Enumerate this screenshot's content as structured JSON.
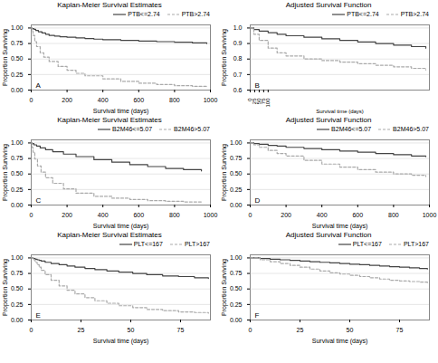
{
  "chart_data": [
    {
      "type": "step",
      "title": "Kaplan-Meier Survival Estimates",
      "xlabel": "Survival time (days)",
      "ylabel": "Proportion Surviving",
      "annotations": [
        "A"
      ],
      "legend": "upper right",
      "grid": true,
      "xlim": [
        0,
        1000
      ],
      "xticks": [
        0,
        200,
        400,
        600,
        800,
        1000
      ],
      "ylim": [
        0.0,
        1.05
      ],
      "yticks": [
        {
          "value": 0,
          "label": "0.00"
        },
        0.25,
        {
          "value": 0.5,
          "label": "0.50"
        },
        0.75,
        {
          "value": 1.0,
          "label": "1.00"
        }
      ],
      "series": [
        {
          "name": "PTB<=2.74",
          "color": "#444444",
          "line_style": "solid",
          "x": [
            0,
            5,
            15,
            25,
            40,
            60,
            80,
            100,
            130,
            160,
            200,
            250,
            300,
            350,
            400,
            500,
            600,
            700,
            800,
            900,
            980
          ],
          "values": [
            1.0,
            0.99,
            0.98,
            0.96,
            0.94,
            0.92,
            0.9,
            0.88,
            0.87,
            0.86,
            0.85,
            0.84,
            0.83,
            0.82,
            0.81,
            0.8,
            0.79,
            0.78,
            0.77,
            0.76,
            0.75
          ]
        },
        {
          "name": "PTB>2.74",
          "color": "#aaaaaa",
          "line_style": "dashed",
          "x": [
            0,
            5,
            10,
            20,
            30,
            50,
            70,
            100,
            150,
            200,
            250,
            300,
            400,
            500,
            600,
            700,
            800,
            900,
            980
          ],
          "values": [
            1.0,
            0.95,
            0.88,
            0.78,
            0.7,
            0.6,
            0.53,
            0.46,
            0.38,
            0.32,
            0.27,
            0.23,
            0.18,
            0.14,
            0.11,
            0.09,
            0.07,
            0.06,
            0.05
          ]
        }
      ]
    },
    {
      "type": "step",
      "title": "Adjusted Survival Function",
      "xlabel": "Survival time (days)",
      "ylabel": "Proportion Surviving",
      "annotations": [
        "B"
      ],
      "legend": "upper right",
      "grid": true,
      "xlim": [
        0,
        1000
      ],
      "xticks": [
        0,
        25,
        50,
        75,
        100
      ],
      "ylim": [
        0.6,
        1.02
      ],
      "yticks": [
        0.6,
        0.7,
        0.8,
        0.9,
        {
          "value": 1.0,
          "label": "1.0"
        }
      ],
      "series": [
        {
          "name": "PTB<=2.74",
          "color": "#444444",
          "line_style": "solid",
          "x": [
            0,
            20,
            50,
            100,
            150,
            200,
            300,
            400,
            500,
            600,
            700,
            800,
            900,
            980
          ],
          "values": [
            1.0,
            0.99,
            0.98,
            0.97,
            0.96,
            0.95,
            0.94,
            0.93,
            0.92,
            0.91,
            0.9,
            0.89,
            0.88,
            0.87
          ]
        },
        {
          "name": "PTB>2.74",
          "color": "#aaaaaa",
          "line_style": "dashed",
          "x": [
            0,
            20,
            50,
            100,
            150,
            200,
            300,
            400,
            500,
            600,
            700,
            800,
            900,
            980
          ],
          "values": [
            1.0,
            0.96,
            0.92,
            0.87,
            0.84,
            0.82,
            0.8,
            0.79,
            0.78,
            0.77,
            0.76,
            0.75,
            0.74,
            0.73
          ]
        }
      ]
    },
    {
      "type": "step",
      "title": "Kaplan-Meier Survival Estimates",
      "xlabel": "Survival time (days)",
      "ylabel": "Proportion Surviving",
      "annotations": [
        "C"
      ],
      "legend": "upper right",
      "grid": true,
      "xlim": [
        0,
        1000
      ],
      "xticks": [
        0,
        200,
        400,
        600,
        800,
        1000
      ],
      "ylim": [
        0.0,
        1.05
      ],
      "yticks": [
        {
          "value": 0,
          "label": "0.00"
        },
        0.25,
        {
          "value": 0.5,
          "label": "0.50"
        },
        0.75,
        {
          "value": 1.0,
          "label": "1.00"
        }
      ],
      "series": [
        {
          "name": "B2M46<=5.07",
          "color": "#444444",
          "line_style": "solid",
          "x": [
            0,
            5,
            15,
            30,
            50,
            80,
            120,
            180,
            250,
            350,
            450,
            550,
            650,
            750,
            850,
            950
          ],
          "values": [
            1.0,
            0.99,
            0.97,
            0.95,
            0.92,
            0.89,
            0.86,
            0.82,
            0.78,
            0.73,
            0.69,
            0.65,
            0.62,
            0.59,
            0.57,
            0.55
          ]
        },
        {
          "name": "B2M46>5.07",
          "color": "#aaaaaa",
          "line_style": "dashed",
          "x": [
            0,
            5,
            10,
            20,
            35,
            55,
            80,
            120,
            180,
            250,
            350,
            450,
            550,
            650,
            750,
            850,
            950
          ],
          "values": [
            1.0,
            0.93,
            0.85,
            0.74,
            0.63,
            0.53,
            0.44,
            0.35,
            0.26,
            0.19,
            0.14,
            0.11,
            0.09,
            0.07,
            0.06,
            0.05,
            0.04
          ]
        }
      ]
    },
    {
      "type": "step",
      "title": "Adjusted Survival Function",
      "xlabel": "Survival time (days)",
      "ylabel": "Proportion Surviving",
      "annotations": [
        "D"
      ],
      "legend": "upper right",
      "grid": true,
      "xlim": [
        0,
        1000
      ],
      "xticks": [
        0,
        200,
        400,
        600,
        800,
        1000
      ],
      "ylim": [
        0.0,
        1.05
      ],
      "yticks": [
        {
          "value": 0,
          "label": "0.00"
        },
        0.25,
        {
          "value": 0.5,
          "label": "0.50"
        },
        0.75,
        {
          "value": 1.0,
          "label": "1.00"
        }
      ],
      "series": [
        {
          "name": "B2M46<=5.07",
          "color": "#444444",
          "line_style": "solid",
          "x": [
            0,
            20,
            50,
            100,
            150,
            200,
            300,
            400,
            500,
            600,
            700,
            800,
            900,
            980
          ],
          "values": [
            1.0,
            0.99,
            0.98,
            0.96,
            0.95,
            0.93,
            0.91,
            0.89,
            0.87,
            0.85,
            0.83,
            0.81,
            0.79,
            0.78
          ]
        },
        {
          "name": "B2M46>5.07",
          "color": "#aaaaaa",
          "line_style": "dashed",
          "x": [
            0,
            20,
            50,
            100,
            150,
            200,
            300,
            400,
            500,
            600,
            700,
            800,
            900,
            980
          ],
          "values": [
            1.0,
            0.97,
            0.93,
            0.88,
            0.83,
            0.79,
            0.72,
            0.66,
            0.61,
            0.57,
            0.53,
            0.5,
            0.48,
            0.46
          ]
        }
      ]
    },
    {
      "type": "step",
      "title": "Kaplan-Meier Survival Estimates",
      "xlabel": "Survival time (days)",
      "ylabel": "Proportion Surviving",
      "annotations": [
        "E"
      ],
      "legend": "upper right",
      "grid": true,
      "xlim": [
        0,
        90
      ],
      "xticks": [
        0,
        25,
        50,
        75
      ],
      "ylim": [
        0.0,
        1.05
      ],
      "yticks": [
        {
          "value": 0,
          "label": "0.00"
        },
        0.25,
        {
          "value": 0.5,
          "label": "0.50"
        },
        0.75,
        {
          "value": 1.0,
          "label": "1.00"
        }
      ],
      "series": [
        {
          "name": "PLT<=167",
          "color": "#444444",
          "line_style": "solid",
          "x": [
            0,
            1,
            2,
            3,
            4,
            5,
            7,
            10,
            14,
            18,
            22,
            27,
            32,
            38,
            44,
            51,
            58,
            66,
            74,
            82,
            89
          ],
          "values": [
            1.0,
            0.99,
            0.98,
            0.97,
            0.96,
            0.95,
            0.93,
            0.91,
            0.89,
            0.87,
            0.85,
            0.83,
            0.81,
            0.79,
            0.77,
            0.75,
            0.73,
            0.71,
            0.7,
            0.68,
            0.67
          ]
        },
        {
          "name": "PLT>167",
          "color": "#aaaaaa",
          "line_style": "dashed",
          "x": [
            0,
            1,
            2,
            3,
            4,
            5,
            7,
            10,
            14,
            18,
            22,
            27,
            32,
            38,
            44,
            51,
            58,
            66,
            74,
            82,
            89
          ],
          "values": [
            1.0,
            0.97,
            0.93,
            0.89,
            0.85,
            0.8,
            0.73,
            0.64,
            0.55,
            0.48,
            0.42,
            0.36,
            0.31,
            0.27,
            0.23,
            0.2,
            0.17,
            0.15,
            0.13,
            0.12,
            0.11
          ]
        }
      ]
    },
    {
      "type": "step",
      "title": "Adjusted Survival Function",
      "xlabel": "Survival time (days)",
      "ylabel": "Proportion Surviving",
      "annotations": [
        "F"
      ],
      "legend": "upper right",
      "grid": true,
      "xlim": [
        0,
        90
      ],
      "xticks": [
        0,
        25,
        50,
        75
      ],
      "ylim": [
        0.0,
        1.05
      ],
      "yticks": [
        {
          "value": 0,
          "label": "0.00"
        },
        0.25,
        {
          "value": 0.5,
          "label": "0.50"
        },
        0.75,
        {
          "value": 1.0,
          "label": "1.00"
        }
      ],
      "series": [
        {
          "name": "PLT<=167",
          "color": "#444444",
          "line_style": "solid",
          "x": [
            0,
            5,
            10,
            15,
            20,
            25,
            30,
            35,
            40,
            45,
            50,
            55,
            60,
            65,
            70,
            75,
            80,
            85,
            89
          ],
          "values": [
            1.0,
            0.99,
            0.98,
            0.97,
            0.96,
            0.95,
            0.94,
            0.93,
            0.92,
            0.91,
            0.9,
            0.89,
            0.88,
            0.87,
            0.86,
            0.85,
            0.84,
            0.83,
            0.82
          ]
        },
        {
          "name": "PLT>167",
          "color": "#aaaaaa",
          "line_style": "dashed",
          "x": [
            0,
            5,
            10,
            15,
            20,
            25,
            30,
            35,
            40,
            45,
            50,
            55,
            60,
            65,
            70,
            75,
            80,
            85,
            89
          ],
          "values": [
            1.0,
            0.97,
            0.94,
            0.91,
            0.88,
            0.85,
            0.82,
            0.79,
            0.76,
            0.74,
            0.72,
            0.7,
            0.68,
            0.66,
            0.64,
            0.63,
            0.62,
            0.61,
            0.6
          ]
        }
      ]
    }
  ]
}
